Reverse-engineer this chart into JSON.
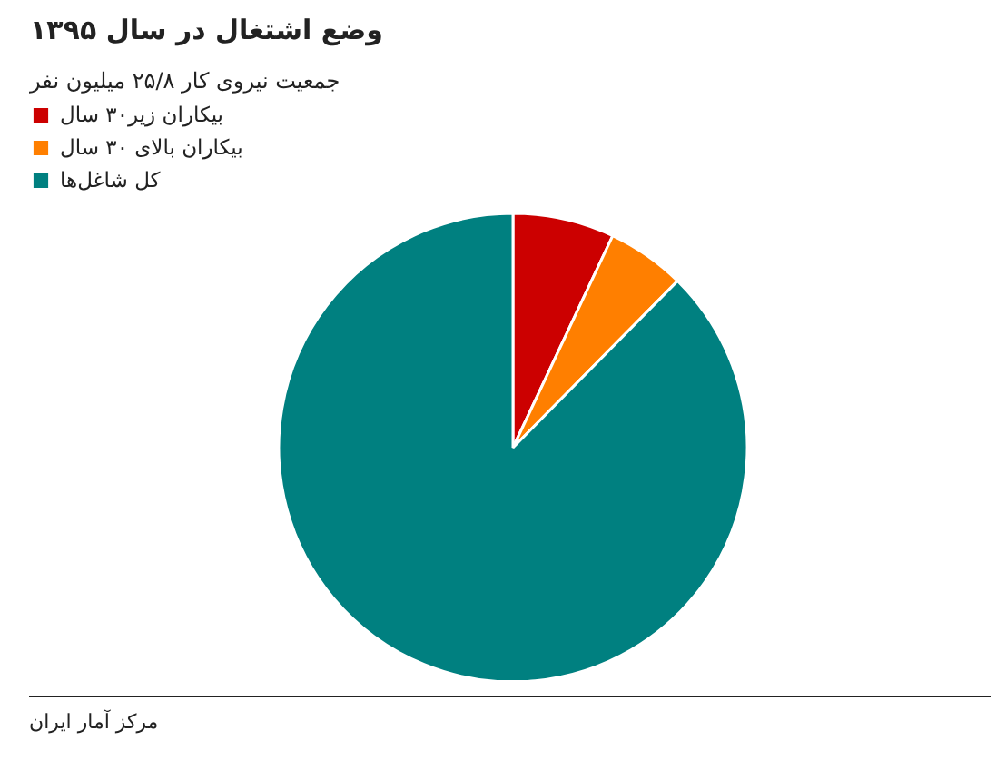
{
  "chart_data": {
    "type": "pie",
    "title": "وضع اشتغال در سال ۱۳۹۵",
    "subtitle": "جمعیت نیروی کار ۲۵/۸ میلیون نفر",
    "categories": [
      "بیکاران زیر۳۰ سال",
      "بیکاران بالای ۳۰ سال",
      "کل شاغل‌ها"
    ],
    "values": [
      7.0,
      5.4,
      87.6
    ],
    "colors": [
      "#cc0000",
      "#ff7f00",
      "#008080"
    ],
    "legend": "top left",
    "annotations": [
      "مرکز آمار ایران"
    ]
  }
}
